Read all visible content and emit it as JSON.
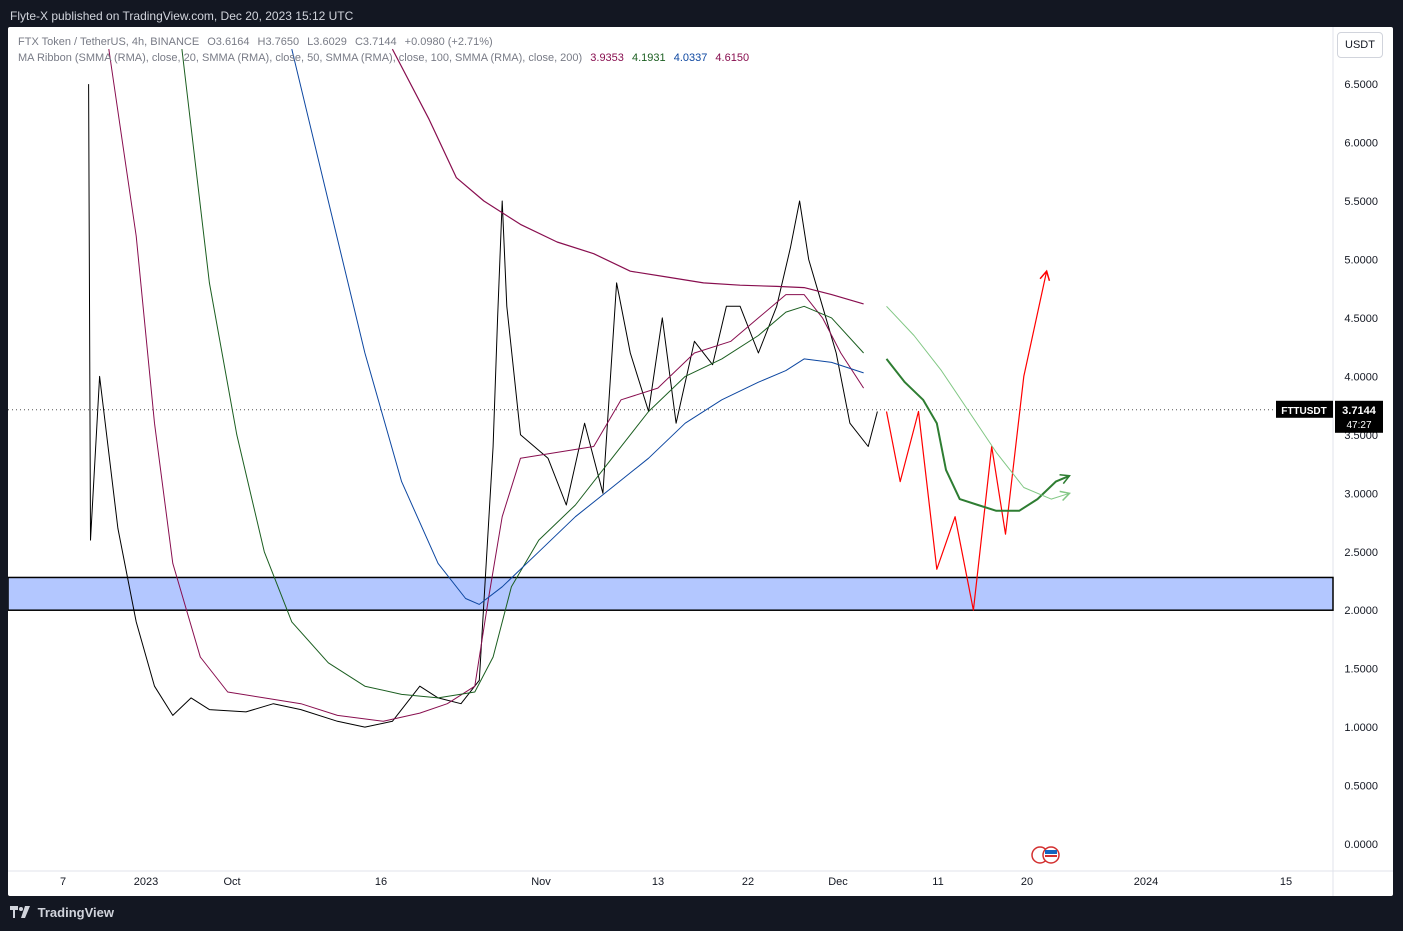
{
  "header": {
    "publish_text": "Flyte-X published on TradingView.com, Dec 20, 2023 15:12 UTC"
  },
  "legend": {
    "symbol": "FTX Token / TetherUS, 4h, BINANCE",
    "ohlc": {
      "open": "O3.6164",
      "high": "H3.7650",
      "low": "L3.6029",
      "close": "C3.7144",
      "change": "+0.0980 (+2.71%)"
    },
    "indicator": "MA Ribbon (SMMA (RMA), close, 20, SMMA (RMA), close, 50, SMMA (RMA), close, 100, SMMA (RMA), close, 200)",
    "ma_values": [
      {
        "value": "3.9353",
        "color": "#880e4f"
      },
      {
        "value": "4.1931",
        "color": "#1b5e20"
      },
      {
        "value": "4.0337",
        "color": "#0d47a1"
      },
      {
        "value": "4.6150",
        "color": "#880e4f"
      }
    ]
  },
  "currency_button": "USDT",
  "price_label": {
    "symbol": "FTTUSDT",
    "price": "3.7144",
    "countdown": "47:27"
  },
  "footer": {
    "brand": "TradingView"
  },
  "chart_data": {
    "type": "line",
    "symbol": "FTTUSDT",
    "ylim": [
      0,
      6.8
    ],
    "y_ticks": [
      "6.5000",
      "6.0000",
      "5.5000",
      "5.0000",
      "4.5000",
      "4.0000",
      "3.5000",
      "3.0000",
      "2.5000",
      "2.0000",
      "1.5000",
      "1.0000",
      "0.5000",
      "0.0000"
    ],
    "x_ticks": [
      {
        "label": "7",
        "x": 0
      },
      {
        "label": "2023",
        "x": 1
      },
      {
        "label": "Oct",
        "x": 2
      },
      {
        "label": "16",
        "x": 3
      },
      {
        "label": "Nov",
        "x": 4
      },
      {
        "label": "13",
        "x": 5
      },
      {
        "label": "22",
        "x": 6
      },
      {
        "label": "Dec",
        "x": 7
      },
      {
        "label": "11",
        "x": 8
      },
      {
        "label": "20",
        "x": 9
      },
      {
        "label": "2024",
        "x": 10
      },
      {
        "label": "15",
        "x": 11
      }
    ],
    "last_price": 3.7144,
    "support_zone": [
      2.0,
      2.28
    ],
    "colors": {
      "price": "#000000",
      "ma20": "#880e4f",
      "ma50": "#1b5e20",
      "ma100": "#0d47a1",
      "ma200": "#880e4f",
      "zone": "#b3c7ff",
      "projection_red": "#ff0000",
      "projection_green": "#2e7d32",
      "projection_light": "#81c784"
    },
    "series": [
      {
        "key": "price",
        "points": [
          [
            0.28,
            6.5
          ],
          [
            0.3,
            2.6
          ],
          [
            0.4,
            4.0
          ],
          [
            0.6,
            2.7
          ],
          [
            0.8,
            1.9
          ],
          [
            1.0,
            1.35
          ],
          [
            1.2,
            1.1
          ],
          [
            1.4,
            1.25
          ],
          [
            1.6,
            1.15
          ],
          [
            2.0,
            1.13
          ],
          [
            2.3,
            1.2
          ],
          [
            2.6,
            1.15
          ],
          [
            3.0,
            1.05
          ],
          [
            3.3,
            1.0
          ],
          [
            3.6,
            1.05
          ],
          [
            3.9,
            1.35
          ],
          [
            4.1,
            1.25
          ],
          [
            4.35,
            1.2
          ],
          [
            4.55,
            1.4
          ],
          [
            4.7,
            3.4
          ],
          [
            4.75,
            4.5
          ],
          [
            4.8,
            5.5
          ],
          [
            4.85,
            4.6
          ],
          [
            5.0,
            3.5
          ],
          [
            5.3,
            3.3
          ],
          [
            5.5,
            2.9
          ],
          [
            5.7,
            3.6
          ],
          [
            5.9,
            3.0
          ],
          [
            6.05,
            4.8
          ],
          [
            6.2,
            4.2
          ],
          [
            6.4,
            3.7
          ],
          [
            6.55,
            4.5
          ],
          [
            6.7,
            3.6
          ],
          [
            6.9,
            4.3
          ],
          [
            7.1,
            4.1
          ],
          [
            7.25,
            4.6
          ],
          [
            7.4,
            4.6
          ],
          [
            7.6,
            4.2
          ],
          [
            7.8,
            4.6
          ],
          [
            7.95,
            5.1
          ],
          [
            8.05,
            5.5
          ],
          [
            8.15,
            5.0
          ],
          [
            8.3,
            4.6
          ],
          [
            8.45,
            4.2
          ],
          [
            8.6,
            3.6
          ],
          [
            8.8,
            3.4
          ],
          [
            8.9,
            3.7
          ]
        ]
      },
      {
        "key": "ma20",
        "points": [
          [
            0.5,
            6.8
          ],
          [
            0.8,
            5.2
          ],
          [
            1.0,
            3.6
          ],
          [
            1.2,
            2.4
          ],
          [
            1.5,
            1.6
          ],
          [
            1.8,
            1.3
          ],
          [
            2.2,
            1.25
          ],
          [
            2.6,
            1.2
          ],
          [
            3.0,
            1.1
          ],
          [
            3.5,
            1.05
          ],
          [
            3.9,
            1.12
          ],
          [
            4.2,
            1.2
          ],
          [
            4.5,
            1.35
          ],
          [
            4.65,
            2.1
          ],
          [
            4.8,
            2.8
          ],
          [
            5.0,
            3.3
          ],
          [
            5.4,
            3.35
          ],
          [
            5.8,
            3.4
          ],
          [
            6.1,
            3.8
          ],
          [
            6.5,
            3.9
          ],
          [
            6.9,
            4.2
          ],
          [
            7.3,
            4.3
          ],
          [
            7.6,
            4.5
          ],
          [
            7.9,
            4.7
          ],
          [
            8.1,
            4.7
          ],
          [
            8.3,
            4.5
          ],
          [
            8.5,
            4.2
          ],
          [
            8.75,
            3.9
          ]
        ]
      },
      {
        "key": "ma50",
        "points": [
          [
            1.3,
            6.8
          ],
          [
            1.6,
            4.8
          ],
          [
            1.9,
            3.5
          ],
          [
            2.2,
            2.5
          ],
          [
            2.5,
            1.9
          ],
          [
            2.9,
            1.55
          ],
          [
            3.3,
            1.35
          ],
          [
            3.7,
            1.28
          ],
          [
            4.1,
            1.25
          ],
          [
            4.5,
            1.3
          ],
          [
            4.7,
            1.6
          ],
          [
            4.9,
            2.2
          ],
          [
            5.2,
            2.6
          ],
          [
            5.6,
            2.9
          ],
          [
            6.0,
            3.3
          ],
          [
            6.4,
            3.7
          ],
          [
            6.8,
            4.0
          ],
          [
            7.2,
            4.15
          ],
          [
            7.6,
            4.35
          ],
          [
            7.9,
            4.55
          ],
          [
            8.1,
            4.6
          ],
          [
            8.4,
            4.5
          ],
          [
            8.75,
            4.2
          ]
        ]
      },
      {
        "key": "ma100",
        "points": [
          [
            2.5,
            6.8
          ],
          [
            2.9,
            5.5
          ],
          [
            3.3,
            4.2
          ],
          [
            3.7,
            3.1
          ],
          [
            4.1,
            2.4
          ],
          [
            4.4,
            2.1
          ],
          [
            4.55,
            2.05
          ],
          [
            4.8,
            2.2
          ],
          [
            5.2,
            2.5
          ],
          [
            5.6,
            2.8
          ],
          [
            6.0,
            3.05
          ],
          [
            6.4,
            3.3
          ],
          [
            6.8,
            3.6
          ],
          [
            7.2,
            3.8
          ],
          [
            7.6,
            3.95
          ],
          [
            7.9,
            4.05
          ],
          [
            8.1,
            4.15
          ],
          [
            8.4,
            4.12
          ],
          [
            8.75,
            4.03
          ]
        ]
      },
      {
        "key": "ma200",
        "points": [
          [
            3.6,
            6.8
          ],
          [
            4.0,
            6.2
          ],
          [
            4.3,
            5.7
          ],
          [
            4.6,
            5.5
          ],
          [
            5.0,
            5.3
          ],
          [
            5.4,
            5.15
          ],
          [
            5.8,
            5.05
          ],
          [
            6.2,
            4.9
          ],
          [
            6.6,
            4.85
          ],
          [
            7.0,
            4.8
          ],
          [
            7.4,
            4.78
          ],
          [
            7.8,
            4.77
          ],
          [
            8.1,
            4.76
          ],
          [
            8.4,
            4.7
          ],
          [
            8.75,
            4.62
          ]
        ]
      },
      {
        "key": "projection_red",
        "points": [
          [
            9.0,
            3.7
          ],
          [
            9.15,
            3.1
          ],
          [
            9.35,
            3.7
          ],
          [
            9.55,
            2.35
          ],
          [
            9.75,
            2.8
          ],
          [
            9.95,
            2.0
          ],
          [
            10.15,
            3.4
          ],
          [
            10.3,
            2.65
          ],
          [
            10.5,
            4.0
          ],
          [
            10.75,
            4.9
          ]
        ]
      },
      {
        "key": "projection_green",
        "points": [
          [
            9.0,
            4.15
          ],
          [
            9.2,
            3.95
          ],
          [
            9.4,
            3.8
          ],
          [
            9.55,
            3.6
          ],
          [
            9.65,
            3.2
          ],
          [
            9.8,
            2.95
          ],
          [
            10.0,
            2.9
          ],
          [
            10.2,
            2.85
          ],
          [
            10.45,
            2.85
          ],
          [
            10.65,
            2.95
          ],
          [
            10.85,
            3.1
          ],
          [
            11.0,
            3.15
          ]
        ]
      },
      {
        "key": "projection_light",
        "points": [
          [
            9.0,
            4.6
          ],
          [
            9.3,
            4.35
          ],
          [
            9.6,
            4.05
          ],
          [
            9.9,
            3.7
          ],
          [
            10.2,
            3.35
          ],
          [
            10.5,
            3.05
          ],
          [
            10.8,
            2.95
          ],
          [
            11.0,
            3.0
          ]
        ]
      }
    ]
  }
}
